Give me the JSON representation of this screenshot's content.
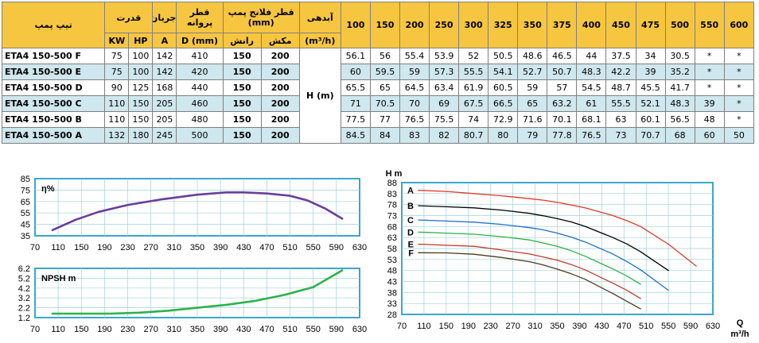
{
  "table": {
    "headers": {
      "model": "تیپ پمپ",
      "power": "قدرت",
      "current": "جریان",
      "impeller": "قطر پروانه",
      "flange": "قطر فلانج پمپ (mm)",
      "flow": "آبدهی",
      "kw": "KW",
      "hp": "HP",
      "amp": "A",
      "dmm": "D (mm)",
      "discharge": "رانش",
      "suction": "مکش",
      "flow_unit": "(m³/h)",
      "head_label": "H (m)"
    },
    "flows": [
      "100",
      "150",
      "200",
      "250",
      "300",
      "325",
      "350",
      "375",
      "400",
      "450",
      "475",
      "500",
      "550",
      "600"
    ],
    "rows": [
      {
        "model": "ETA4 150-500 F",
        "kw": "75",
        "hp": "100",
        "a": "142",
        "d": "410",
        "discharge": "150",
        "suction": "200",
        "heads": [
          "56.1",
          "56",
          "55.4",
          "53.9",
          "52",
          "50.5",
          "48.6",
          "46.5",
          "44",
          "37.5",
          "34",
          "30.5",
          "*",
          "*"
        ]
      },
      {
        "model": "ETA4 150-500 E",
        "kw": "75",
        "hp": "100",
        "a": "142",
        "d": "420",
        "discharge": "150",
        "suction": "200",
        "heads": [
          "60",
          "59.5",
          "59",
          "57.3",
          "55.5",
          "54.1",
          "52.7",
          "50.7",
          "48.3",
          "42.2",
          "39",
          "35.2",
          "*",
          "*"
        ]
      },
      {
        "model": "ETA4 150-500 D",
        "kw": "90",
        "hp": "125",
        "a": "168",
        "d": "440",
        "discharge": "150",
        "suction": "200",
        "heads": [
          "65.5",
          "65",
          "64.5",
          "63.4",
          "61.9",
          "60.5",
          "59",
          "57",
          "54.5",
          "48.7",
          "45.5",
          "41.7",
          "*",
          "*"
        ]
      },
      {
        "model": "ETA4 150-500 C",
        "kw": "110",
        "hp": "150",
        "a": "205",
        "d": "460",
        "discharge": "150",
        "suction": "200",
        "heads": [
          "71",
          "70.5",
          "70",
          "69",
          "67.5",
          "66.5",
          "65",
          "63.2",
          "61",
          "55.5",
          "52.1",
          "48.3",
          "39",
          "*"
        ]
      },
      {
        "model": "ETA4 150-500 B",
        "kw": "110",
        "hp": "150",
        "a": "205",
        "d": "480",
        "discharge": "150",
        "suction": "200",
        "heads": [
          "77.5",
          "77",
          "76.5",
          "75.5",
          "74",
          "72.9",
          "71.6",
          "70.1",
          "68.1",
          "63",
          "60.1",
          "56.5",
          "48",
          "*"
        ]
      },
      {
        "model": "ETA4 150-500 A",
        "kw": "132",
        "hp": "180",
        "a": "245",
        "d": "500",
        "discharge": "150",
        "suction": "200",
        "heads": [
          "84.5",
          "84",
          "83",
          "82",
          "80.7",
          "80",
          "79",
          "77.8",
          "76.5",
          "73",
          "70.7",
          "68",
          "60",
          "50"
        ]
      }
    ]
  },
  "chart_data": [
    {
      "type": "line",
      "id": "efficiency",
      "label": "η%",
      "xlim": [
        70,
        630
      ],
      "ylim": [
        35,
        85
      ],
      "xticks": [
        "70",
        "110",
        "150",
        "190",
        "230",
        "270",
        "310",
        "350",
        "390",
        "430",
        "470",
        "510",
        "550",
        "590",
        "630"
      ],
      "yticks": [
        "85",
        "75",
        "65",
        "55",
        "45",
        "35"
      ],
      "grid": true,
      "series": [
        {
          "color": "#6a3d9a",
          "x": [
            100,
            140,
            180,
            230,
            290,
            350,
            400,
            430,
            470,
            510,
            540,
            570,
            600
          ],
          "y": [
            40,
            49,
            56,
            62,
            67,
            71,
            73,
            73,
            72,
            70,
            66,
            59,
            50
          ]
        }
      ]
    },
    {
      "type": "line",
      "id": "npsh",
      "label": "NPSH m",
      "xlim": [
        70,
        630
      ],
      "ylim": [
        1.2,
        6.2
      ],
      "xticks": [
        "70",
        "110",
        "150",
        "190",
        "230",
        "270",
        "310",
        "350",
        "390",
        "430",
        "470",
        "510",
        "550",
        "590",
        "630"
      ],
      "yticks": [
        "6.2",
        "5.2",
        "4.2",
        "3.2",
        "2.2",
        "1.2"
      ],
      "grid": true,
      "series": [
        {
          "color": "#2bb34a",
          "x": [
            100,
            150,
            200,
            250,
            300,
            350,
            400,
            450,
            500,
            550,
            600
          ],
          "y": [
            1.6,
            1.6,
            1.6,
            1.7,
            1.9,
            2.2,
            2.5,
            2.9,
            3.5,
            4.3,
            6.0
          ]
        }
      ]
    },
    {
      "type": "line",
      "id": "head",
      "ylabel": "H m",
      "xlabel": "Q m³/h",
      "xlim": [
        70,
        630
      ],
      "ylim": [
        28,
        88
      ],
      "xticks": [
        "70",
        "110",
        "150",
        "190",
        "230",
        "270",
        "310",
        "350",
        "390",
        "430",
        "470",
        "510",
        "550",
        "590",
        "630"
      ],
      "yticks": [
        "88",
        "83",
        "78",
        "73",
        "68",
        "63",
        "58",
        "53",
        "48",
        "43",
        "38",
        "33",
        "28"
      ],
      "grid": true,
      "series": [
        {
          "name": "A",
          "color": "#e0392b",
          "x": [
            100,
            150,
            200,
            250,
            300,
            325,
            350,
            375,
            400,
            450,
            475,
            500,
            550,
            600
          ],
          "y": [
            84.5,
            84,
            83,
            82,
            80.7,
            80,
            79,
            77.8,
            76.5,
            73,
            70.7,
            68,
            60,
            50
          ]
        },
        {
          "name": "B",
          "color": "#000000",
          "x": [
            100,
            150,
            200,
            250,
            300,
            325,
            350,
            375,
            400,
            450,
            475,
            500,
            550
          ],
          "y": [
            77.5,
            77,
            76.5,
            75.5,
            74,
            72.9,
            71.6,
            70.1,
            68.1,
            63,
            60.1,
            56.5,
            48
          ]
        },
        {
          "name": "C",
          "color": "#1f6fc5",
          "x": [
            100,
            150,
            200,
            250,
            300,
            325,
            350,
            375,
            400,
            450,
            475,
            500,
            550
          ],
          "y": [
            71,
            70.5,
            70,
            69,
            67.5,
            66.5,
            65,
            63.2,
            61,
            55.5,
            52.1,
            48.3,
            39
          ]
        },
        {
          "name": "D",
          "color": "#2bb34a",
          "x": [
            100,
            150,
            200,
            250,
            300,
            325,
            350,
            375,
            400,
            450,
            475,
            500
          ],
          "y": [
            65.5,
            65,
            64.5,
            63.4,
            61.9,
            60.5,
            59,
            57,
            54.5,
            48.7,
            45.5,
            41.7
          ]
        },
        {
          "name": "E",
          "color": "#c0392b",
          "x": [
            100,
            150,
            200,
            250,
            300,
            325,
            350,
            375,
            400,
            450,
            475,
            500
          ],
          "y": [
            60,
            59.5,
            59,
            57.3,
            55.5,
            54.1,
            52.7,
            50.7,
            48.3,
            42.2,
            39,
            35.2
          ]
        },
        {
          "name": "F",
          "color": "#4a3a1a",
          "x": [
            100,
            150,
            200,
            250,
            300,
            325,
            350,
            375,
            400,
            450,
            475,
            500
          ],
          "y": [
            56.1,
            56,
            55.4,
            53.9,
            52,
            50.5,
            48.6,
            46.5,
            44,
            37.5,
            34,
            30.5
          ]
        }
      ]
    }
  ]
}
